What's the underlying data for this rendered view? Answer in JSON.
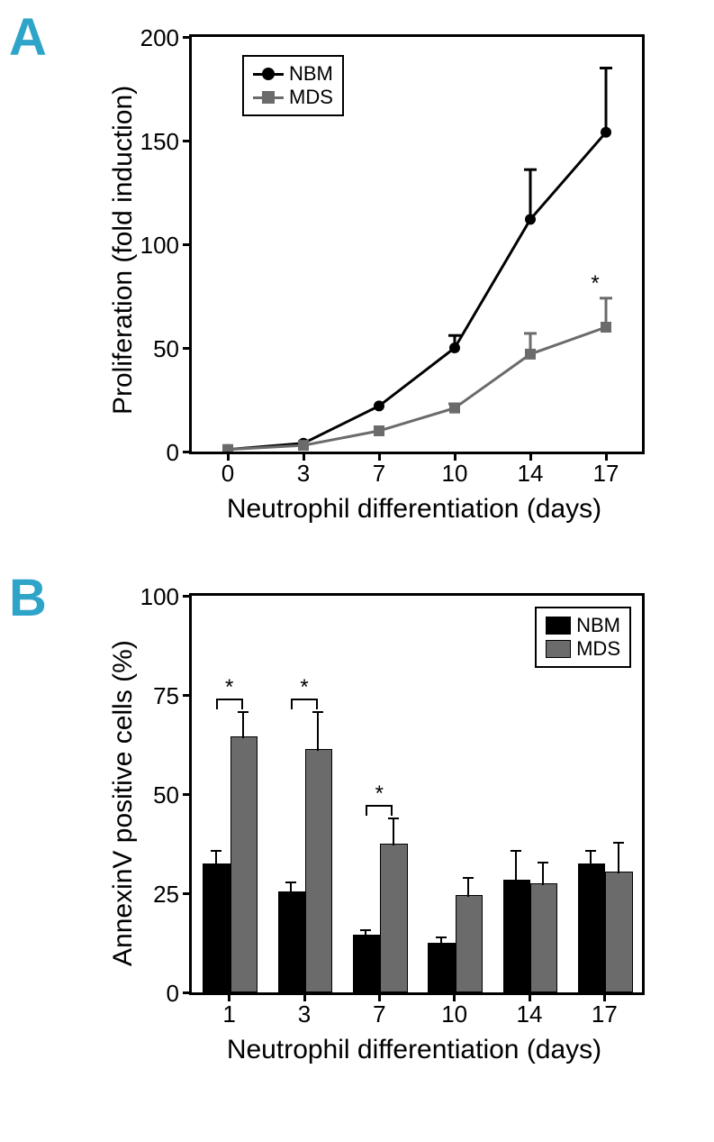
{
  "panelA": {
    "label": "A",
    "type": "line",
    "ylabel": "Proliferation (fold induction)",
    "xlabel": "Neutrophil differentiation (days)",
    "xticks": [
      "0",
      "3",
      "7",
      "10",
      "14",
      "17"
    ],
    "yticks": [
      0,
      50,
      100,
      150,
      200
    ],
    "ylim": [
      0,
      200
    ],
    "series": [
      {
        "name": "NBM",
        "color": "#000000",
        "marker": "circle",
        "values": [
          1,
          4,
          22,
          50,
          112,
          154
        ],
        "errors": [
          0,
          0,
          0,
          6,
          24,
          31
        ]
      },
      {
        "name": "MDS",
        "color": "#6b6b6b",
        "marker": "square",
        "values": [
          1,
          3,
          10,
          21,
          47,
          60
        ],
        "errors": [
          0,
          0,
          0,
          2,
          10,
          14
        ]
      }
    ],
    "sig_star_at": 5,
    "plot_background": "#ffffff",
    "axis_color": "#000000",
    "line_width": 3,
    "marker_size": 12
  },
  "panelB": {
    "label": "B",
    "type": "bar",
    "ylabel": "AnnexinV positive cells (%)",
    "xlabel": "Neutrophil differentiation (days)",
    "xticks": [
      "1",
      "3",
      "7",
      "10",
      "14",
      "17"
    ],
    "yticks": [
      0,
      25,
      50,
      75,
      100
    ],
    "ylim": [
      0,
      100
    ],
    "bar_width": 0.34,
    "series": [
      {
        "name": "NBM",
        "color": "#000000",
        "values": [
          32,
          25,
          14,
          12,
          28,
          32
        ],
        "errors": [
          4,
          3,
          2,
          2,
          8,
          4
        ]
      },
      {
        "name": "MDS",
        "color": "#6b6b6b",
        "values": [
          64,
          61,
          37,
          24,
          27,
          30
        ],
        "errors": [
          7,
          10,
          7,
          5,
          6,
          8
        ]
      }
    ],
    "sig_brackets": [
      0,
      1,
      2
    ],
    "plot_background": "#ffffff",
    "axis_color": "#000000"
  },
  "legend_labels": {
    "nbm": "NBM",
    "mds": "MDS"
  },
  "colors": {
    "panel_label": "#2fa4c9",
    "nbm": "#000000",
    "mds": "#6b6b6b",
    "background": "#ffffff"
  }
}
